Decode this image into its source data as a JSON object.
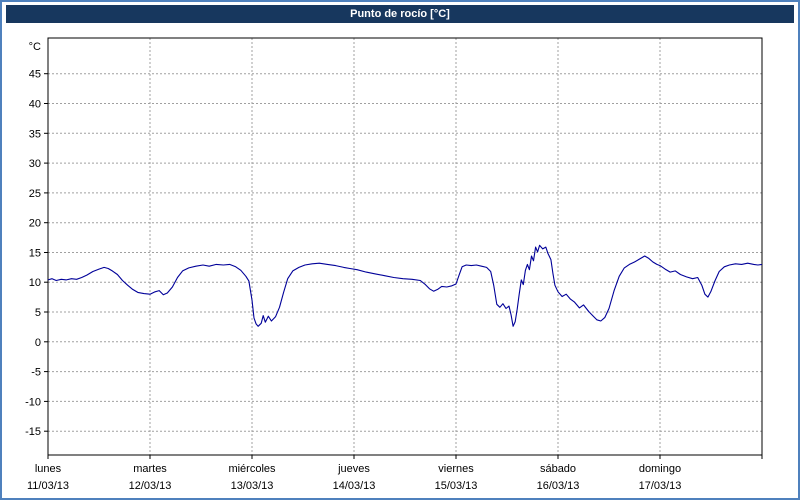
{
  "window": {
    "title": "Punto de rocío [°C]"
  },
  "colors": {
    "frame_border": "#4f81bd",
    "title_bg": "#17375e",
    "title_text": "#ffffff",
    "grid": "#a0a0a0",
    "axis": "#000000",
    "line": "#000099"
  },
  "chart_data": {
    "type": "line",
    "title": "Punto de rocío [°C]",
    "y_unit_label": "°C",
    "ylabel": "Punto de rocío (°C)",
    "ylim": [
      -19,
      51
    ],
    "yticks": [
      45,
      40,
      35,
      30,
      25,
      20,
      15,
      10,
      5,
      0,
      -5,
      -10,
      -15
    ],
    "grid": true,
    "legend": "none",
    "x_range_days": [
      0,
      7
    ],
    "x_days": [
      {
        "name": "lunes",
        "date": "11/03/13"
      },
      {
        "name": "martes",
        "date": "12/03/13"
      },
      {
        "name": "miércoles",
        "date": "13/03/13"
      },
      {
        "name": "jueves",
        "date": "14/03/13"
      },
      {
        "name": "viernes",
        "date": "15/03/13"
      },
      {
        "name": "sábado",
        "date": "16/03/13"
      },
      {
        "name": "domingo",
        "date": "17/03/13"
      }
    ],
    "series": [
      {
        "name": "punto-de-rocio",
        "color": "#000099",
        "points": [
          [
            0.0,
            10.4
          ],
          [
            0.04,
            10.6
          ],
          [
            0.08,
            10.3
          ],
          [
            0.13,
            10.5
          ],
          [
            0.18,
            10.4
          ],
          [
            0.23,
            10.6
          ],
          [
            0.28,
            10.5
          ],
          [
            0.33,
            10.8
          ],
          [
            0.38,
            11.2
          ],
          [
            0.44,
            11.8
          ],
          [
            0.5,
            12.2
          ],
          [
            0.55,
            12.5
          ],
          [
            0.59,
            12.3
          ],
          [
            0.63,
            11.9
          ],
          [
            0.68,
            11.3
          ],
          [
            0.73,
            10.3
          ],
          [
            0.78,
            9.5
          ],
          [
            0.83,
            8.8
          ],
          [
            0.88,
            8.3
          ],
          [
            0.94,
            8.1
          ],
          [
            1.0,
            8.0
          ],
          [
            1.05,
            8.4
          ],
          [
            1.09,
            8.6
          ],
          [
            1.13,
            7.9
          ],
          [
            1.17,
            8.2
          ],
          [
            1.22,
            9.2
          ],
          [
            1.27,
            10.8
          ],
          [
            1.32,
            11.9
          ],
          [
            1.38,
            12.4
          ],
          [
            1.45,
            12.7
          ],
          [
            1.52,
            12.9
          ],
          [
            1.58,
            12.7
          ],
          [
            1.65,
            13.0
          ],
          [
            1.72,
            12.9
          ],
          [
            1.78,
            13.0
          ],
          [
            1.84,
            12.6
          ],
          [
            1.89,
            12.0
          ],
          [
            1.94,
            11.0
          ],
          [
            1.97,
            10.2
          ],
          [
            2.0,
            7.0
          ],
          [
            2.02,
            4.0
          ],
          [
            2.04,
            3.0
          ],
          [
            2.06,
            2.6
          ],
          [
            2.09,
            3.1
          ],
          [
            2.11,
            4.4
          ],
          [
            2.13,
            3.3
          ],
          [
            2.16,
            4.3
          ],
          [
            2.19,
            3.5
          ],
          [
            2.23,
            4.2
          ],
          [
            2.27,
            5.8
          ],
          [
            2.31,
            8.3
          ],
          [
            2.35,
            10.6
          ],
          [
            2.4,
            11.9
          ],
          [
            2.46,
            12.5
          ],
          [
            2.52,
            12.9
          ],
          [
            2.59,
            13.1
          ],
          [
            2.66,
            13.2
          ],
          [
            2.74,
            13.0
          ],
          [
            2.82,
            12.8
          ],
          [
            2.9,
            12.5
          ],
          [
            2.96,
            12.3
          ],
          [
            3.03,
            12.1
          ],
          [
            3.12,
            11.7
          ],
          [
            3.21,
            11.4
          ],
          [
            3.3,
            11.1
          ],
          [
            3.39,
            10.8
          ],
          [
            3.48,
            10.6
          ],
          [
            3.57,
            10.5
          ],
          [
            3.65,
            10.3
          ],
          [
            3.7,
            9.6
          ],
          [
            3.74,
            8.9
          ],
          [
            3.78,
            8.5
          ],
          [
            3.82,
            8.8
          ],
          [
            3.86,
            9.3
          ],
          [
            3.91,
            9.2
          ],
          [
            3.96,
            9.4
          ],
          [
            4.0,
            9.7
          ],
          [
            4.03,
            11.2
          ],
          [
            4.06,
            12.6
          ],
          [
            4.1,
            12.9
          ],
          [
            4.15,
            12.8
          ],
          [
            4.2,
            12.9
          ],
          [
            4.25,
            12.7
          ],
          [
            4.3,
            12.5
          ],
          [
            4.34,
            11.8
          ],
          [
            4.37,
            9.5
          ],
          [
            4.4,
            6.3
          ],
          [
            4.43,
            5.8
          ],
          [
            4.46,
            6.4
          ],
          [
            4.49,
            5.6
          ],
          [
            4.52,
            6.0
          ],
          [
            4.54,
            4.5
          ],
          [
            4.56,
            2.6
          ],
          [
            4.58,
            3.4
          ],
          [
            4.6,
            5.5
          ],
          [
            4.62,
            8.0
          ],
          [
            4.64,
            10.4
          ],
          [
            4.66,
            9.6
          ],
          [
            4.68,
            12.0
          ],
          [
            4.7,
            13.0
          ],
          [
            4.72,
            12.1
          ],
          [
            4.74,
            14.4
          ],
          [
            4.76,
            13.6
          ],
          [
            4.78,
            15.9
          ],
          [
            4.8,
            15.1
          ],
          [
            4.82,
            16.2
          ],
          [
            4.85,
            15.6
          ],
          [
            4.88,
            15.9
          ],
          [
            4.9,
            14.9
          ],
          [
            4.93,
            13.8
          ],
          [
            4.95,
            11.5
          ],
          [
            4.97,
            9.5
          ],
          [
            5.0,
            8.4
          ],
          [
            5.04,
            7.6
          ],
          [
            5.08,
            8.0
          ],
          [
            5.12,
            7.2
          ],
          [
            5.16,
            6.7
          ],
          [
            5.21,
            5.7
          ],
          [
            5.25,
            6.2
          ],
          [
            5.3,
            5.1
          ],
          [
            5.34,
            4.4
          ],
          [
            5.38,
            3.7
          ],
          [
            5.42,
            3.5
          ],
          [
            5.46,
            4.1
          ],
          [
            5.5,
            5.6
          ],
          [
            5.55,
            8.6
          ],
          [
            5.6,
            11.0
          ],
          [
            5.65,
            12.4
          ],
          [
            5.7,
            13.0
          ],
          [
            5.75,
            13.4
          ],
          [
            5.8,
            13.9
          ],
          [
            5.85,
            14.4
          ],
          [
            5.89,
            14.0
          ],
          [
            5.93,
            13.4
          ],
          [
            5.97,
            13.0
          ],
          [
            6.0,
            12.8
          ],
          [
            6.05,
            12.2
          ],
          [
            6.1,
            11.7
          ],
          [
            6.15,
            11.9
          ],
          [
            6.2,
            11.3
          ],
          [
            6.26,
            10.9
          ],
          [
            6.32,
            10.6
          ],
          [
            6.37,
            10.8
          ],
          [
            6.41,
            9.5
          ],
          [
            6.44,
            8.0
          ],
          [
            6.47,
            7.5
          ],
          [
            6.5,
            8.5
          ],
          [
            6.54,
            10.3
          ],
          [
            6.58,
            11.8
          ],
          [
            6.63,
            12.6
          ],
          [
            6.68,
            12.9
          ],
          [
            6.74,
            13.1
          ],
          [
            6.8,
            13.0
          ],
          [
            6.86,
            13.2
          ],
          [
            6.92,
            13.0
          ],
          [
            6.96,
            12.9
          ],
          [
            7.0,
            13.0
          ]
        ]
      }
    ]
  }
}
